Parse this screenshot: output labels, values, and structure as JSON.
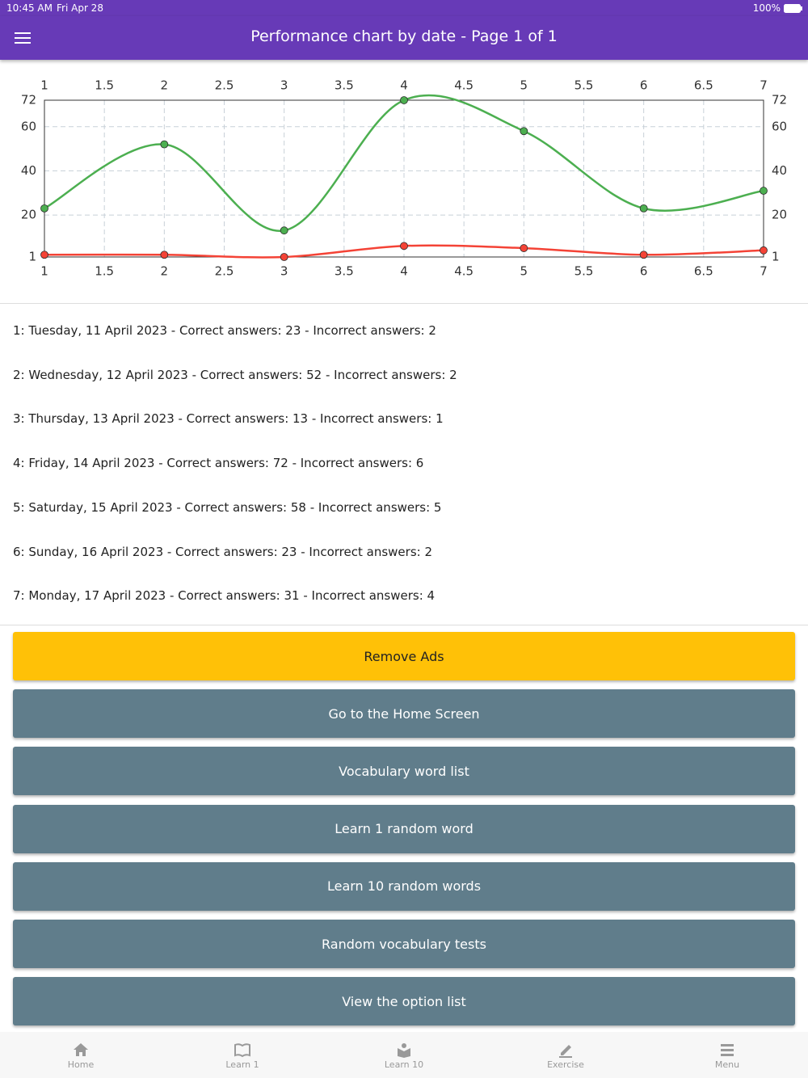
{
  "status_bar": {
    "time": "10:45 AM",
    "date": "Fri Apr 28",
    "battery": "100%"
  },
  "header": {
    "title": "Performance chart by date - Page 1 of 1"
  },
  "chart_data": {
    "type": "line",
    "x": [
      1,
      2,
      3,
      4,
      5,
      6,
      7
    ],
    "series": [
      {
        "color": "#4caf50",
        "values": [
          23,
          52,
          13,
          72,
          58,
          23,
          31
        ]
      },
      {
        "color": "#f44336",
        "values": [
          2,
          2,
          1,
          6,
          5,
          2,
          4
        ]
      }
    ],
    "xlim": [
      1,
      7
    ],
    "xticks": [
      1,
      1.5,
      2,
      2.5,
      3,
      3.5,
      4,
      4.5,
      5,
      5.5,
      6,
      6.5,
      7
    ],
    "ylim": [
      1,
      72
    ],
    "yticks": [
      1,
      20,
      40,
      60,
      72
    ],
    "grid": true,
    "smooth": true
  },
  "entries": [
    "1: Tuesday, 11 April 2023 - Correct answers: 23 - Incorrect answers: 2",
    "2: Wednesday, 12 April 2023 - Correct answers: 52 - Incorrect answers: 2",
    "3: Thursday, 13 April 2023 - Correct answers: 13 - Incorrect answers: 1",
    "4: Friday, 14 April 2023 - Correct answers: 72 - Incorrect answers: 6",
    "5: Saturday, 15 April 2023 - Correct answers: 58 - Incorrect answers: 5",
    "6: Sunday, 16 April 2023 - Correct answers: 23 - Incorrect answers: 2",
    "7: Monday, 17 April 2023 - Correct answers: 31 - Incorrect answers: 4"
  ],
  "buttons": [
    "Remove Ads",
    "Go to the Home Screen",
    "Vocabulary word list",
    "Learn 1 random word",
    "Learn 10 random words",
    "Random vocabulary tests",
    "View the option list"
  ],
  "nav": [
    "Home",
    "Learn 1",
    "Learn 10",
    "Exercise",
    "Menu"
  ]
}
